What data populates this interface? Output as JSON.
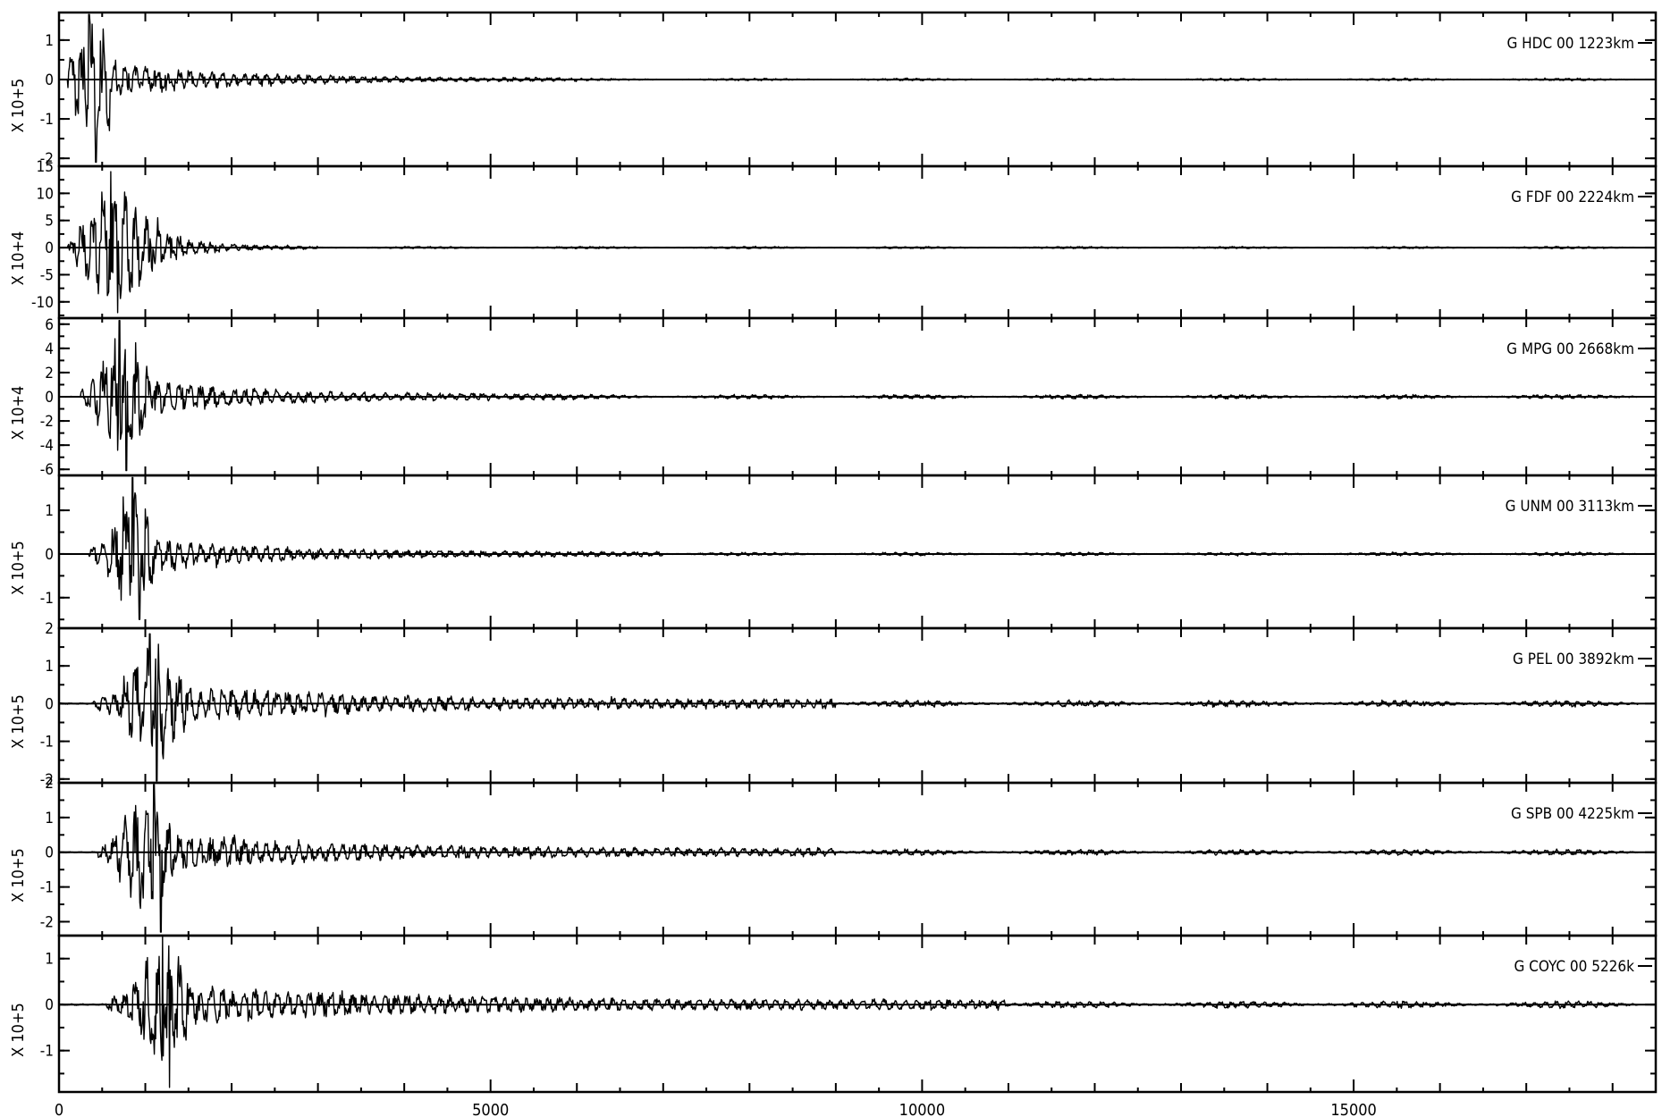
{
  "chart_data": {
    "type": "line",
    "title": "",
    "xlabel": "",
    "xlim": [
      0,
      18500
    ],
    "xticks": [
      "0",
      "5000",
      "10000",
      "15000"
    ],
    "grid": false,
    "panels": [
      {
        "name": "G HDC 00 1223km",
        "scale": "X 10+5",
        "ylim": [
          -2.2,
          1.7
        ],
        "yticks": [
          "1",
          "0",
          "-1",
          "-2"
        ],
        "onset": 100,
        "pmax": 1.65,
        "pmin": -2.1,
        "peak_t": 350,
        "main": [
          100,
          700
        ],
        "coda": 6000,
        "noise": 0.01
      },
      {
        "name": "G FDF 00 2224km",
        "scale": "X 10+4",
        "ylim": [
          -13,
          15
        ],
        "yticks": [
          "15",
          "10",
          "5",
          "0",
          "-5",
          "-10"
        ],
        "onset": 100,
        "pmax": 14,
        "pmin": -12,
        "peak_t": 600,
        "main": [
          200,
          1200
        ],
        "coda": 3000,
        "noise": 0.01
      },
      {
        "name": "G MPG 00 2668km",
        "scale": "X 10+4",
        "ylim": [
          -6.5,
          6.5
        ],
        "yticks": [
          "6",
          "4",
          "2",
          "0",
          "-2",
          "-4",
          "-6"
        ],
        "onset": 250,
        "pmax": 6.3,
        "pmin": -6.1,
        "peak_t": 700,
        "main": [
          350,
          1100
        ],
        "coda": 6000,
        "noise": 0.02
      },
      {
        "name": "G UNM 00 3113km",
        "scale": "X 10+5",
        "ylim": [
          -1.7,
          1.8
        ],
        "yticks": [
          "1",
          "0",
          "-1"
        ],
        "onset": 350,
        "pmax": 1.75,
        "pmin": -1.5,
        "peak_t": 850,
        "main": [
          550,
          1150
        ],
        "coda": 7000,
        "noise": 0.015
      },
      {
        "name": "G PEL 00 3892km",
        "scale": "X 10+5",
        "ylim": [
          -2.1,
          2.0
        ],
        "yticks": [
          "2",
          "1",
          "0",
          "-1",
          "-2"
        ],
        "onset": 400,
        "pmax": 1.85,
        "pmin": -2.05,
        "peak_t": 1050,
        "main": [
          700,
          1500
        ],
        "coda": 9000,
        "noise": 0.03
      },
      {
        "name": "G SPB 00 4225km",
        "scale": "X 10+5",
        "ylim": [
          -2.4,
          2.0
        ],
        "yticks": [
          "2",
          "1",
          "0",
          "-1",
          "-2"
        ],
        "onset": 450,
        "pmax": 1.95,
        "pmin": -2.3,
        "peak_t": 1100,
        "main": [
          650,
          1350
        ],
        "coda": 9000,
        "noise": 0.025
      },
      {
        "name": "G COYC 00 5226k",
        "scale": "X 10+5",
        "ylim": [
          -1.9,
          1.5
        ],
        "yticks": [
          "1",
          "0",
          "-1"
        ],
        "onset": 550,
        "pmax": 1.5,
        "pmin": -1.8,
        "peak_t": 1200,
        "main": [
          850,
          1550
        ],
        "coda": 11000,
        "noise": 0.03
      }
    ]
  }
}
